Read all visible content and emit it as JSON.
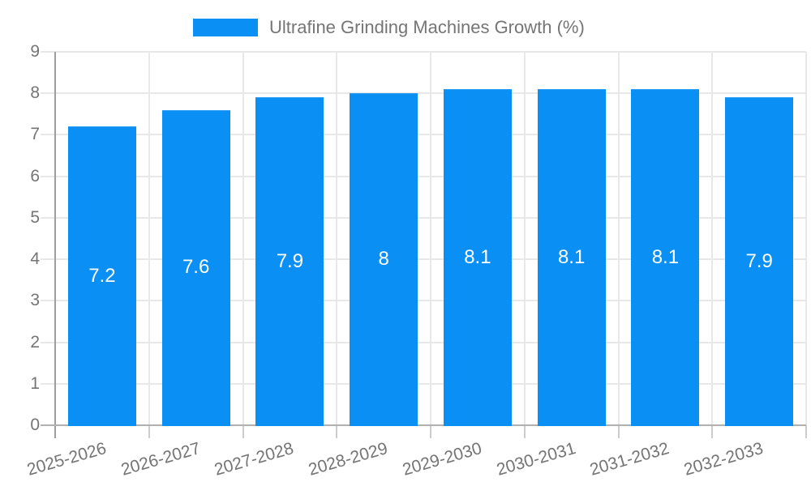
{
  "chart_data": {
    "type": "bar",
    "title": "",
    "legend": {
      "label": "Ultrafine Grinding Machines Growth (%)",
      "position": "top"
    },
    "categories": [
      "2025-2026",
      "2026-2027",
      "2027-2028",
      "2028-2029",
      "2029-2030",
      "2030-2031",
      "2031-2032",
      "2032-2033"
    ],
    "values": [
      7.2,
      7.6,
      7.9,
      8,
      8.1,
      8.1,
      8.1,
      7.9
    ],
    "xlabel": "",
    "ylabel": "",
    "ylim": [
      0,
      9
    ],
    "y_ticks": [
      0,
      1,
      2,
      3,
      4,
      5,
      6,
      7,
      8,
      9
    ],
    "grid": true,
    "colors": {
      "bar": "#0a8ff5",
      "bar_label": "#ffffff",
      "axis_label": "#757575",
      "legend_text": "#757575",
      "gridline": "#e8e8e8",
      "y_axis_line": "#9e9e9e",
      "x_axis_line": "#b0b0b0",
      "tick": "#cccccc",
      "background": "#ffffff"
    }
  }
}
